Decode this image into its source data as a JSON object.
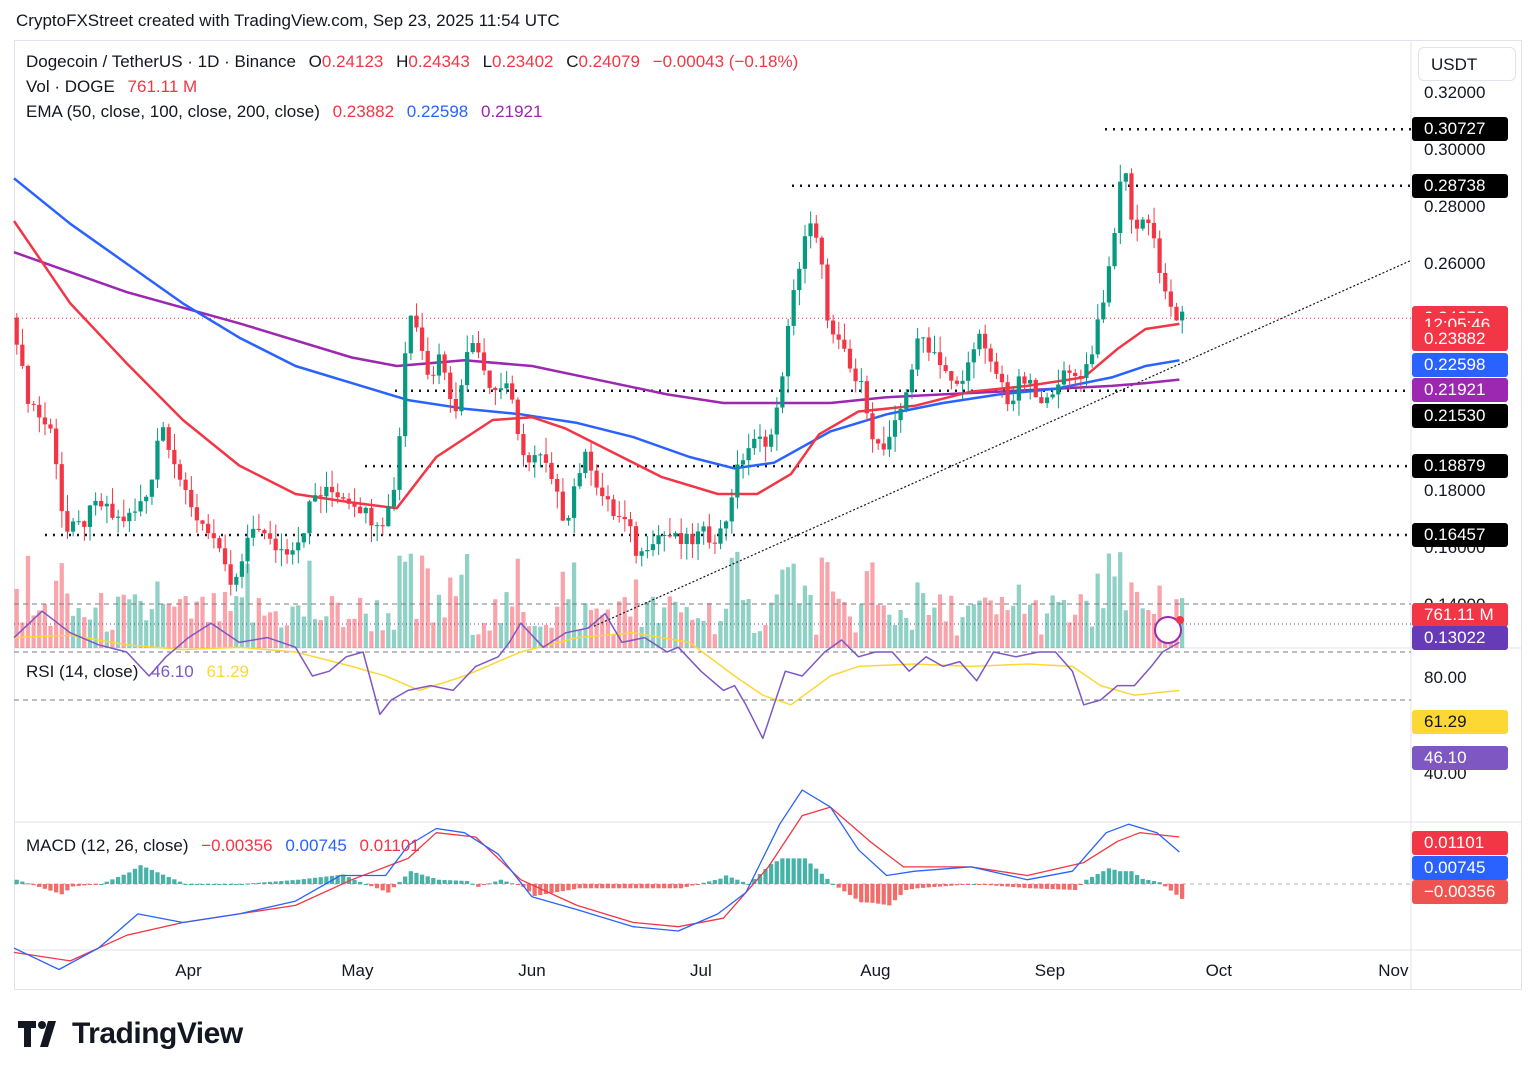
{
  "header": {
    "attribution": "CryptoFXStreet created with TradingView.com, Sep 23, 2025 11:54 UTC"
  },
  "symbol": {
    "name": "Dogecoin / TetherUS · 1D · Binance",
    "o_label": "O",
    "o": "0.24123",
    "h_label": "H",
    "h": "0.24343",
    "l_label": "L",
    "l": "0.23402",
    "c_label": "C",
    "c": "0.24079",
    "change": "−0.00043 (−0.18%)"
  },
  "volume_legend": {
    "label": "Vol · DOGE",
    "value": "761.11 M"
  },
  "ema_legend": {
    "label": "EMA (50, close, 100, close, 200, close)",
    "v50": "0.23882",
    "v100": "0.22598",
    "v200": "0.21921"
  },
  "rsi_legend": {
    "label": "RSI (14, close)",
    "rsi": "46.10",
    "ma": "61.29"
  },
  "macd_legend": {
    "label": "MACD (12, 26, close)",
    "hist": "−0.00356",
    "macd": "0.00745",
    "signal": "0.01101"
  },
  "currency_button": "USDT",
  "colors": {
    "up": "#089981",
    "down": "#f23645",
    "ema50": "#f23645",
    "ema100": "#2962ff",
    "ema200": "#9c27b0",
    "rsi": "#7e57c2",
    "rsi_ma": "#fdd835",
    "macd": "#2962ff",
    "signal": "#f23645"
  },
  "price_axis": {
    "ticks": [
      "0.32000",
      "0.30000",
      "0.28000",
      "0.26000",
      "0.18000",
      "0.16000",
      "0.14000"
    ],
    "tick_values": [
      0.32,
      0.3,
      0.28,
      0.26,
      0.18,
      0.16,
      0.14
    ]
  },
  "price_tags": [
    {
      "label": "0.30727",
      "value": 0.30727,
      "color": "#000000"
    },
    {
      "label": "0.28738",
      "value": 0.28738,
      "color": "#000000"
    },
    {
      "label": "0.24079",
      "value": 0.24079,
      "color": "#f23645"
    },
    {
      "label": "12:05:46",
      "value": 0.2385,
      "color": "#f23645"
    },
    {
      "label": "0.23882",
      "value": 0.2335,
      "color": "#f23645"
    },
    {
      "label": "0.22598",
      "value": 0.2245,
      "color": "#2962ff"
    },
    {
      "label": "0.21921",
      "value": 0.2155,
      "color": "#9c27b0"
    },
    {
      "label": "0.21530",
      "value": 0.2065,
      "color": "#000000"
    },
    {
      "label": "0.18879",
      "value": 0.18879,
      "color": "#000000"
    },
    {
      "label": "0.16457",
      "value": 0.16457,
      "color": "#000000"
    },
    {
      "label": "761.11 M",
      "value": 0.1365,
      "color": "#f23645"
    },
    {
      "label": "0.13022",
      "value": 0.1282,
      "color": "#673ab7"
    }
  ],
  "rsi_axis": {
    "ticks": [
      "80.00",
      "40.00"
    ],
    "tag_ma": "61.29",
    "tag_rsi": "46.10"
  },
  "macd_axis": {
    "tag_signal": "0.01101",
    "tag_macd": "0.00745",
    "tag_hist": "−0.00356"
  },
  "months": [
    {
      "label": "Apr",
      "day": 31
    },
    {
      "label": "May",
      "day": 61
    },
    {
      "label": "Jun",
      "day": 92
    },
    {
      "label": "Jul",
      "day": 122
    },
    {
      "label": "Aug",
      "day": 153
    },
    {
      "label": "Sep",
      "day": 184
    },
    {
      "label": "Oct",
      "day": 214
    },
    {
      "label": "Nov",
      "day": 245
    }
  ],
  "chart_data": {
    "type": "candlestick",
    "x_unit": "days since Mar 1, 2025",
    "y_range": [
      0.13,
      0.325
    ],
    "horizontal_levels": [
      0.30727,
      0.28738,
      0.2153,
      0.18879,
      0.16457
    ],
    "trendline": {
      "from": [
        103,
        0.1325
      ],
      "to": [
        248,
        0.261
      ]
    },
    "price_path": [
      [
        0,
        0.241
      ],
      [
        2,
        0.215
      ],
      [
        5,
        0.205
      ],
      [
        7,
        0.2
      ],
      [
        8,
        0.183
      ],
      [
        9,
        0.165
      ],
      [
        12,
        0.168
      ],
      [
        15,
        0.176
      ],
      [
        18,
        0.17
      ],
      [
        21,
        0.171
      ],
      [
        24,
        0.18
      ],
      [
        26,
        0.205
      ],
      [
        28,
        0.195
      ],
      [
        31,
        0.174
      ],
      [
        33,
        0.17
      ],
      [
        35,
        0.166
      ],
      [
        37,
        0.154
      ],
      [
        39,
        0.145
      ],
      [
        41,
        0.158
      ],
      [
        43,
        0.17
      ],
      [
        45,
        0.162
      ],
      [
        48,
        0.159
      ],
      [
        51,
        0.164
      ],
      [
        53,
        0.178
      ],
      [
        55,
        0.179
      ],
      [
        57,
        0.18
      ],
      [
        59,
        0.178
      ],
      [
        61,
        0.176
      ],
      [
        63,
        0.171
      ],
      [
        66,
        0.17
      ],
      [
        68,
        0.186
      ],
      [
        69,
        0.214
      ],
      [
        70,
        0.245
      ],
      [
        72,
        0.235
      ],
      [
        74,
        0.22
      ],
      [
        76,
        0.23
      ],
      [
        78,
        0.205
      ],
      [
        80,
        0.225
      ],
      [
        82,
        0.235
      ],
      [
        84,
        0.22
      ],
      [
        86,
        0.215
      ],
      [
        88,
        0.22
      ],
      [
        90,
        0.19
      ],
      [
        92,
        0.193
      ],
      [
        94,
        0.191
      ],
      [
        96,
        0.18
      ],
      [
        98,
        0.169
      ],
      [
        100,
        0.186
      ],
      [
        102,
        0.193
      ],
      [
        104,
        0.18
      ],
      [
        106,
        0.173
      ],
      [
        109,
        0.168
      ],
      [
        111,
        0.156
      ],
      [
        113,
        0.164
      ],
      [
        116,
        0.165
      ],
      [
        118,
        0.162
      ],
      [
        120,
        0.162
      ],
      [
        122,
        0.165
      ],
      [
        124,
        0.164
      ],
      [
        126,
        0.166
      ],
      [
        128,
        0.184
      ],
      [
        130,
        0.195
      ],
      [
        133,
        0.198
      ],
      [
        135,
        0.2
      ],
      [
        137,
        0.23
      ],
      [
        139,
        0.255
      ],
      [
        141,
        0.275
      ],
      [
        143,
        0.265
      ],
      [
        145,
        0.235
      ],
      [
        147,
        0.23
      ],
      [
        149,
        0.22
      ],
      [
        151,
        0.215
      ],
      [
        153,
        0.196
      ],
      [
        155,
        0.194
      ],
      [
        157,
        0.205
      ],
      [
        159,
        0.22
      ],
      [
        161,
        0.235
      ],
      [
        163,
        0.23
      ],
      [
        165,
        0.225
      ],
      [
        167,
        0.215
      ],
      [
        169,
        0.22
      ],
      [
        171,
        0.237
      ],
      [
        173,
        0.225
      ],
      [
        175,
        0.22
      ],
      [
        177,
        0.21
      ],
      [
        179,
        0.22
      ],
      [
        181,
        0.215
      ],
      [
        183,
        0.208
      ],
      [
        185,
        0.22
      ],
      [
        187,
        0.22
      ],
      [
        189,
        0.221
      ],
      [
        191,
        0.225
      ],
      [
        193,
        0.245
      ],
      [
        195,
        0.26
      ],
      [
        196,
        0.28
      ],
      [
        197,
        0.3
      ],
      [
        198,
        0.28
      ],
      [
        200,
        0.27
      ],
      [
        201,
        0.28
      ],
      [
        203,
        0.265
      ],
      [
        204,
        0.25
      ],
      [
        206,
        0.242
      ],
      [
        207,
        0.2408
      ]
    ],
    "candles_drawn_from_path": true,
    "ema": {
      "ema50": [
        [
          0,
          0.275
        ],
        [
          10,
          0.246
        ],
        [
          20,
          0.225
        ],
        [
          30,
          0.205
        ],
        [
          40,
          0.189
        ],
        [
          50,
          0.179
        ],
        [
          60,
          0.176
        ],
        [
          68,
          0.174
        ],
        [
          75,
          0.192
        ],
        [
          85,
          0.205
        ],
        [
          92,
          0.206
        ],
        [
          98,
          0.202
        ],
        [
          105,
          0.195
        ],
        [
          115,
          0.185
        ],
        [
          125,
          0.179
        ],
        [
          132,
          0.179
        ],
        [
          138,
          0.186
        ],
        [
          143,
          0.2
        ],
        [
          150,
          0.208
        ],
        [
          160,
          0.21
        ],
        [
          170,
          0.215
        ],
        [
          180,
          0.217
        ],
        [
          190,
          0.22
        ],
        [
          196,
          0.23
        ],
        [
          201,
          0.237
        ],
        [
          207,
          0.2388
        ]
      ],
      "ema100": [
        [
          0,
          0.29
        ],
        [
          10,
          0.274
        ],
        [
          20,
          0.26
        ],
        [
          30,
          0.246
        ],
        [
          40,
          0.234
        ],
        [
          50,
          0.224
        ],
        [
          60,
          0.218
        ],
        [
          70,
          0.212
        ],
        [
          80,
          0.209
        ],
        [
          90,
          0.207
        ],
        [
          100,
          0.204
        ],
        [
          110,
          0.199
        ],
        [
          120,
          0.192
        ],
        [
          128,
          0.188
        ],
        [
          135,
          0.19
        ],
        [
          145,
          0.201
        ],
        [
          155,
          0.207
        ],
        [
          165,
          0.211
        ],
        [
          175,
          0.214
        ],
        [
          185,
          0.216
        ],
        [
          195,
          0.22
        ],
        [
          201,
          0.224
        ],
        [
          207,
          0.226
        ]
      ],
      "ema200": [
        [
          0,
          0.264
        ],
        [
          20,
          0.25
        ],
        [
          40,
          0.239
        ],
        [
          60,
          0.227
        ],
        [
          68,
          0.224
        ],
        [
          80,
          0.226
        ],
        [
          92,
          0.224
        ],
        [
          104,
          0.219
        ],
        [
          116,
          0.214
        ],
        [
          126,
          0.211
        ],
        [
          135,
          0.211
        ],
        [
          145,
          0.211
        ],
        [
          155,
          0.213
        ],
        [
          165,
          0.214
        ],
        [
          175,
          0.215
        ],
        [
          185,
          0.216
        ],
        [
          195,
          0.217
        ],
        [
          201,
          0.218
        ],
        [
          207,
          0.2192
        ]
      ]
    },
    "rsi": {
      "range": [
        25,
        90
      ],
      "overbought": 70,
      "oversold": 30,
      "midline": 50,
      "values": [
        [
          0,
          44
        ],
        [
          5,
          33
        ],
        [
          10,
          42
        ],
        [
          15,
          47
        ],
        [
          20,
          50
        ],
        [
          24,
          60
        ],
        [
          27,
          52
        ],
        [
          31,
          44
        ],
        [
          35,
          38
        ],
        [
          40,
          46
        ],
        [
          45,
          44
        ],
        [
          50,
          48
        ],
        [
          53,
          60
        ],
        [
          56,
          58
        ],
        [
          59,
          52
        ],
        [
          62,
          50
        ],
        [
          65,
          76
        ],
        [
          67,
          70
        ],
        [
          70,
          66
        ],
        [
          74,
          64
        ],
        [
          78,
          66
        ],
        [
          82,
          56
        ],
        [
          86,
          52
        ],
        [
          88,
          46
        ],
        [
          90,
          38
        ],
        [
          94,
          48
        ],
        [
          98,
          42
        ],
        [
          102,
          40
        ],
        [
          105,
          34
        ],
        [
          108,
          46
        ],
        [
          112,
          44
        ],
        [
          116,
          50
        ],
        [
          118,
          48
        ],
        [
          122,
          58
        ],
        [
          126,
          66
        ],
        [
          128,
          64
        ],
        [
          130,
          72
        ],
        [
          133,
          86
        ],
        [
          135,
          72
        ],
        [
          137,
          58
        ],
        [
          140,
          60
        ],
        [
          144,
          50
        ],
        [
          147,
          45
        ],
        [
          150,
          52
        ],
        [
          153,
          50
        ],
        [
          156,
          50
        ],
        [
          159,
          58
        ],
        [
          162,
          52
        ],
        [
          165,
          56
        ],
        [
          168,
          54
        ],
        [
          171,
          62
        ],
        [
          174,
          50
        ],
        [
          178,
          52
        ],
        [
          182,
          50
        ],
        [
          185,
          50
        ],
        [
          188,
          58
        ],
        [
          190,
          72
        ],
        [
          193,
          70
        ],
        [
          196,
          64
        ],
        [
          199,
          64
        ],
        [
          202,
          56
        ],
        [
          204,
          50
        ],
        [
          207,
          46
        ]
      ],
      "ma": [
        [
          0,
          44
        ],
        [
          10,
          43
        ],
        [
          20,
          47
        ],
        [
          30,
          49
        ],
        [
          40,
          48
        ],
        [
          50,
          50
        ],
        [
          60,
          56
        ],
        [
          66,
          60
        ],
        [
          72,
          66
        ],
        [
          80,
          60
        ],
        [
          90,
          50
        ],
        [
          100,
          44
        ],
        [
          110,
          42
        ],
        [
          120,
          46
        ],
        [
          128,
          60
        ],
        [
          133,
          68
        ],
        [
          138,
          72
        ],
        [
          145,
          60
        ],
        [
          150,
          56
        ],
        [
          160,
          55
        ],
        [
          170,
          56
        ],
        [
          180,
          55
        ],
        [
          188,
          56
        ],
        [
          193,
          64
        ],
        [
          199,
          68
        ],
        [
          207,
          66
        ]
      ]
    },
    "macd": {
      "range": [
        -0.025,
        0.028
      ],
      "macd_line": [
        [
          0,
          -0.015
        ],
        [
          8,
          -0.02
        ],
        [
          15,
          -0.015
        ],
        [
          22,
          -0.007
        ],
        [
          30,
          -0.009
        ],
        [
          40,
          -0.007
        ],
        [
          50,
          -0.004
        ],
        [
          58,
          0.002
        ],
        [
          66,
          0.002
        ],
        [
          70,
          0.009
        ],
        [
          75,
          0.013
        ],
        [
          80,
          0.012
        ],
        [
          86,
          0.007
        ],
        [
          92,
          -0.003
        ],
        [
          100,
          -0.006
        ],
        [
          110,
          -0.01
        ],
        [
          118,
          -0.011
        ],
        [
          125,
          -0.007
        ],
        [
          130,
          -0.002
        ],
        [
          136,
          0.014
        ],
        [
          140,
          0.022
        ],
        [
          145,
          0.018
        ],
        [
          150,
          0.008
        ],
        [
          155,
          0.002
        ],
        [
          160,
          0.003
        ],
        [
          170,
          0.004
        ],
        [
          180,
          0.001
        ],
        [
          188,
          0.003
        ],
        [
          194,
          0.012
        ],
        [
          198,
          0.014
        ],
        [
          203,
          0.012
        ],
        [
          207,
          0.0075
        ]
      ],
      "signal_line": [
        [
          0,
          -0.016
        ],
        [
          10,
          -0.018
        ],
        [
          20,
          -0.012
        ],
        [
          30,
          -0.009
        ],
        [
          40,
          -0.007
        ],
        [
          50,
          -0.005
        ],
        [
          60,
          0.001
        ],
        [
          70,
          0.006
        ],
        [
          75,
          0.012
        ],
        [
          82,
          0.011
        ],
        [
          90,
          0.001
        ],
        [
          100,
          -0.005
        ],
        [
          110,
          -0.009
        ],
        [
          118,
          -0.01
        ],
        [
          126,
          -0.008
        ],
        [
          134,
          0.004
        ],
        [
          140,
          0.016
        ],
        [
          145,
          0.018
        ],
        [
          152,
          0.01
        ],
        [
          158,
          0.004
        ],
        [
          170,
          0.004
        ],
        [
          180,
          0.002
        ],
        [
          190,
          0.005
        ],
        [
          196,
          0.01
        ],
        [
          200,
          0.012
        ],
        [
          207,
          0.011
        ]
      ]
    },
    "volume": {
      "scale_max": 1000
    }
  }
}
